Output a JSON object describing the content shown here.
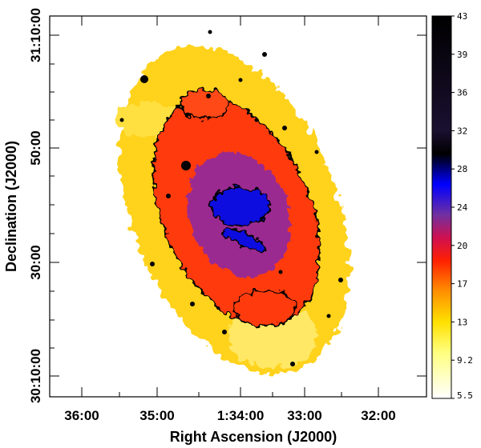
{
  "figure": {
    "x_axis": {
      "title": "Right Ascension (J2000)",
      "ticks": [
        "36:00",
        "35:00",
        "1:34:00",
        "33:00",
        "32:00"
      ]
    },
    "y_axis": {
      "title": "Declination (J2000)",
      "ticks": [
        "31:10:00",
        "50:00",
        "30:00",
        "30:10:00"
      ]
    },
    "colorbar": {
      "labels": [
        "43",
        "39",
        "36",
        "32",
        "28",
        "24",
        "20",
        "17",
        "13",
        "9.2",
        "5.5"
      ],
      "colors": [
        "#000000",
        "#2b1f4a",
        "#0000ff",
        "#5a2fa0",
        "#c2186b",
        "#ff2a00",
        "#ff7a00",
        "#ffd400",
        "#ffff66",
        "#ffffee",
        "#ffffff"
      ]
    }
  }
}
